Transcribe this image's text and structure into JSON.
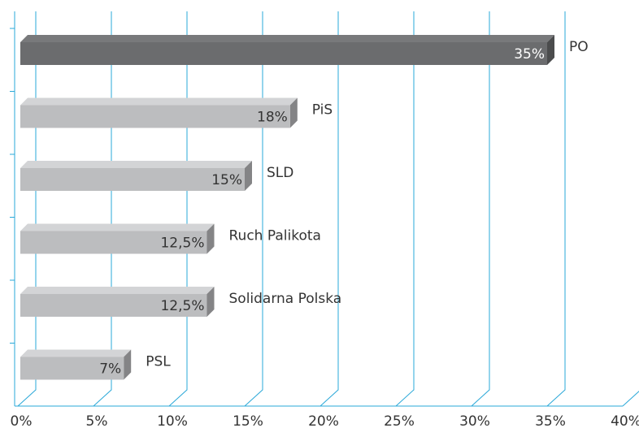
{
  "chart_data": {
    "type": "bar",
    "orientation": "horizontal",
    "categories": [
      "PO",
      "PiS",
      "SLD",
      "Ruch Palikota",
      "Solidarna Polska",
      "PSL"
    ],
    "values": [
      35,
      18,
      15,
      12.5,
      12.5,
      7
    ],
    "value_labels": [
      "35%",
      "18%",
      "15%",
      "12,5%",
      "12,5%",
      "7%"
    ],
    "colors": [
      "#6b6c6e",
      "#bcbdbf",
      "#bcbdbf",
      "#bcbdbf",
      "#bcbdbf",
      "#bcbdbf"
    ],
    "xlim": [
      0,
      40
    ],
    "xticks": [
      {
        "value": 0,
        "label": "0%"
      },
      {
        "value": 5,
        "label": "5%"
      },
      {
        "value": 10,
        "label": "10%"
      },
      {
        "value": 15,
        "label": "15%"
      },
      {
        "value": 20,
        "label": "20%"
      },
      {
        "value": 25,
        "label": "25%"
      },
      {
        "value": 30,
        "label": "30%"
      },
      {
        "value": 35,
        "label": "35%"
      },
      {
        "value": 40,
        "label": "40%"
      }
    ],
    "grid": true,
    "grid_color": "#2aa8d8"
  }
}
